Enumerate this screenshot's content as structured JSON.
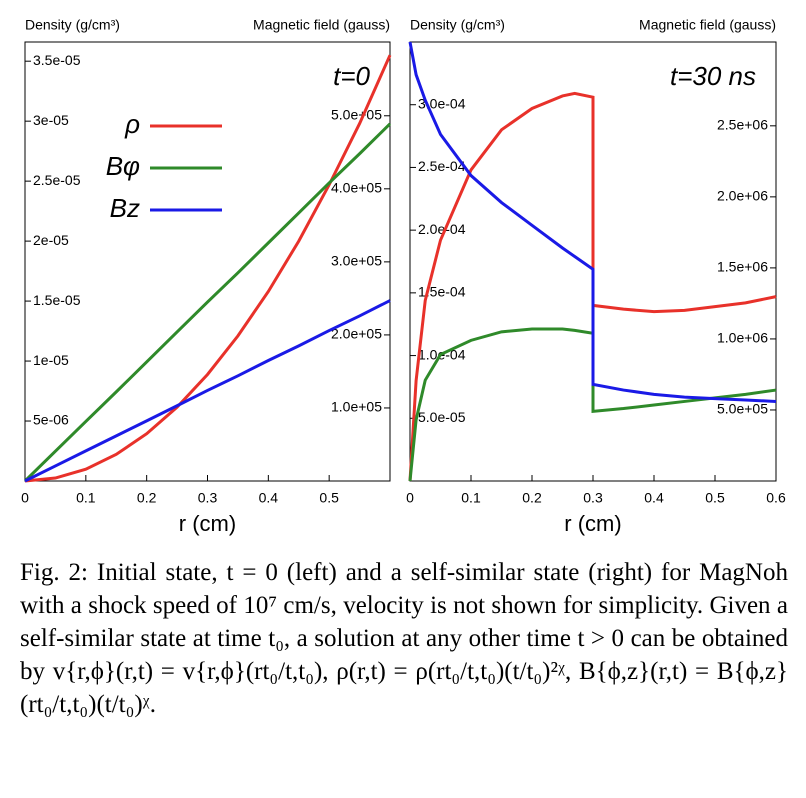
{
  "chart_data": [
    {
      "type": "line",
      "ylabel": "Density (g/cm³)",
      "y2label": "Magnetic field (gauss)",
      "xlabel": "r (cm)",
      "annotation": "t=0",
      "xlim": [
        0,
        0.6
      ],
      "xticks": [
        0,
        0.1,
        0.2,
        0.3,
        0.4,
        0.5
      ],
      "ylim": [
        0,
        3.66e-05
      ],
      "yticks": [
        {
          "value": 5e-06,
          "label": "5e-06"
        },
        {
          "value": 1e-05,
          "label": "1e-05"
        },
        {
          "value": 1.5e-05,
          "label": "1.5e-05"
        },
        {
          "value": 2e-05,
          "label": "2e-05"
        },
        {
          "value": 2.5e-05,
          "label": "2.5e-05"
        },
        {
          "value": 3e-05,
          "label": "3e-05"
        },
        {
          "value": 3.5e-05,
          "label": "3.5e-05"
        }
      ],
      "y2lim": [
        0,
        601000
      ],
      "y2ticks": [
        {
          "value": 100000,
          "label": "1.0e+05"
        },
        {
          "value": 200000,
          "label": "2.0e+05"
        },
        {
          "value": 300000,
          "label": "3.0e+05"
        },
        {
          "value": 400000,
          "label": "4.0e+05"
        },
        {
          "value": 500000,
          "label": "5.0e+05"
        }
      ],
      "x": [
        0,
        0.05,
        0.1,
        0.15,
        0.2,
        0.25,
        0.3,
        0.35,
        0.4,
        0.45,
        0.5,
        0.55,
        0.6
      ],
      "series": [
        {
          "name": "ρ",
          "color": "#e8312a",
          "axis": "y",
          "values": [
            0,
            2.47e-07,
            9.86e-07,
            2.22e-06,
            3.94e-06,
            6.16e-06,
            8.88e-06,
            1.21e-05,
            1.58e-05,
            2e-05,
            2.47e-05,
            2.98e-05,
            3.55e-05
          ]
        },
        {
          "name": "Bφ",
          "color": "#2f8a2a",
          "axis": "y2",
          "values": [
            0,
            40800,
            81500,
            122000,
            163000,
            204000,
            245000,
            285000,
            326000,
            367000,
            408000,
            448000,
            489000
          ]
        },
        {
          "name": "Bz",
          "color": "#1a1ae6",
          "axis": "y2",
          "values": [
            0,
            20600,
            41200,
            61800,
            82300,
            103000,
            124000,
            144000,
            165000,
            185000,
            206000,
            226000,
            247000
          ]
        }
      ]
    },
    {
      "type": "line",
      "ylabel": "Density (g/cm³)",
      "y2label": "Magnetic field (gauss)",
      "xlabel": "r (cm)",
      "annotation": "t=30 ns",
      "xlim": [
        0,
        0.6
      ],
      "xticks": [
        0,
        0.1,
        0.2,
        0.3,
        0.4,
        0.5,
        0.6
      ],
      "ylim": [
        0,
        0.00035
      ],
      "yticks": [
        {
          "value": 5e-05,
          "label": "5.0e-05"
        },
        {
          "value": 0.0001,
          "label": "1.0e-04"
        },
        {
          "value": 0.00015,
          "label": "1.5e-04"
        },
        {
          "value": 0.0002,
          "label": "2.0e-04"
        },
        {
          "value": 0.00025,
          "label": "2.5e-04"
        },
        {
          "value": 0.0003,
          "label": "3.0e-04"
        }
      ],
      "y2lim": [
        0,
        3090000
      ],
      "y2ticks": [
        {
          "value": 500000,
          "label": "5.0e+05"
        },
        {
          "value": 1000000,
          "label": "1.0e+06"
        },
        {
          "value": 1500000,
          "label": "1.5e+06"
        },
        {
          "value": 2000000,
          "label": "2.0e+06"
        },
        {
          "value": 2500000,
          "label": "2.5e+06"
        }
      ],
      "x": [
        0,
        0.01,
        0.025,
        0.05,
        0.1,
        0.15,
        0.2,
        0.25,
        0.27,
        0.3,
        0.3,
        0.35,
        0.4,
        0.45,
        0.5,
        0.55,
        0.6
      ],
      "series": [
        {
          "color": "#e8312a",
          "axis": "y",
          "values": [
            0,
            8e-05,
            0.000144,
            0.000192,
            0.000248,
            0.00028,
            0.000297,
            0.000307,
            0.000309,
            0.000306,
            0.00014,
            0.000137,
            0.000135,
            0.000136,
            0.000139,
            0.000142,
            0.000147
          ]
        },
        {
          "color": "#2f8a2a",
          "axis": "y2",
          "values": [
            0,
            430000,
            710000,
            890000,
            990000,
            1050000,
            1070000,
            1070000,
            1060000,
            1040000,
            490000,
            510000,
            535000,
            560000,
            585000,
            610000,
            640000
          ]
        },
        {
          "color": "#1a1ae6",
          "axis": "y2",
          "values": [
            3090000,
            2860000,
            2680000,
            2440000,
            2150000,
            1960000,
            1800000,
            1640000,
            1580000,
            1490000,
            680000,
            640000,
            610000,
            590000,
            580000,
            570000,
            560000
          ]
        }
      ]
    }
  ],
  "caption": "Fig. 2: Initial state, t = 0 (left) and a self-similar state (right) for MagNoh with a shock speed of 10⁷ cm/s, velocity is not shown for simplicity. Given a self-similar state at time t₀, a solution at any other time t > 0 can be obtained by v{r,ϕ}(r,t) = v{r,ϕ}(rt₀/t,t₀), ρ(r,t) = ρ(rt₀/t,t₀)(t/t₀)²ᵡ, B{ϕ,z}(r,t) = B{ϕ,z}(rt₀/t,t₀)(t/t₀)ᵡ."
}
